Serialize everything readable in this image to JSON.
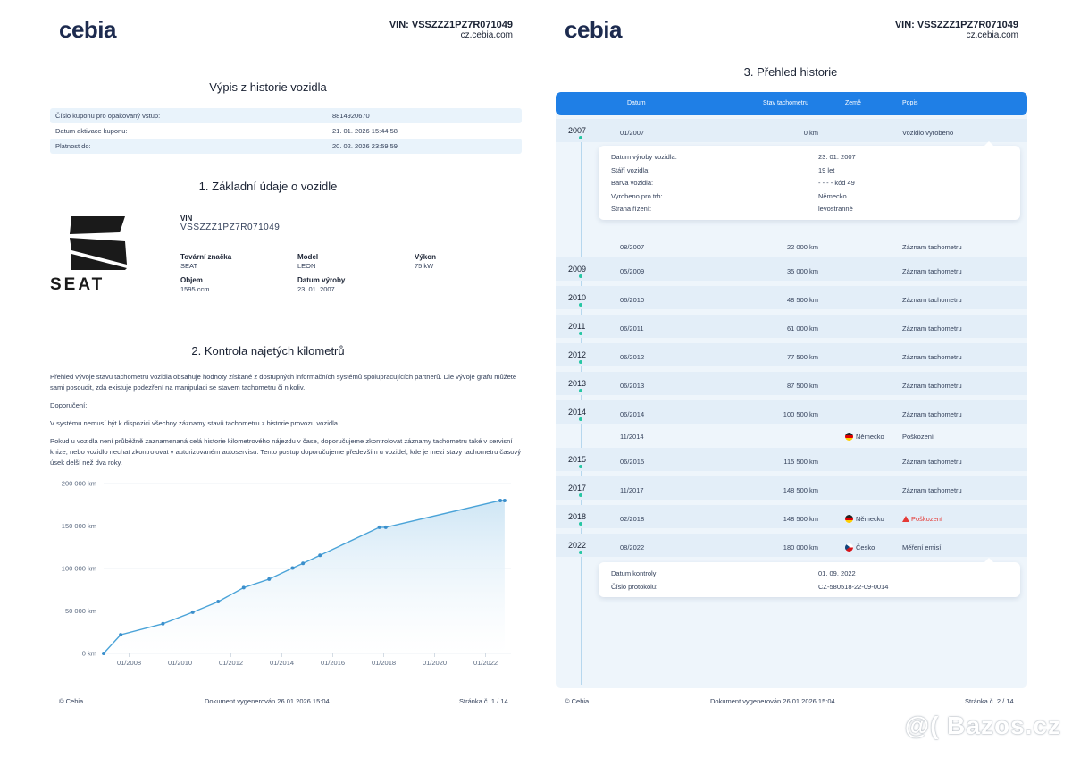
{
  "header": {
    "logo": "cebia",
    "vin_line": "VIN: VSSZZZ1PZ7R071049",
    "site": "cz.cebia.com"
  },
  "page1": {
    "title": "Výpis z historie vozidla",
    "coupon": [
      {
        "label": "Číslo kuponu pro opakovaný vstup:",
        "value": "8814920670"
      },
      {
        "label": "Datum aktivace kuponu:",
        "value": "21. 01. 2026 15:44:58"
      },
      {
        "label": "Platnost do:",
        "value": "20. 02. 2026 23:59:59"
      }
    ],
    "section1": "1. Základní údaje o vozidle",
    "brand_logo": "SEAT",
    "vehicle": {
      "vin_label": "VIN",
      "vin_value": "VSSZZZ1PZ7R071049",
      "make_label": "Tovární značka",
      "make_value": "SEAT",
      "model_label": "Model",
      "model_value": "LEON",
      "power_label": "Výkon",
      "power_value": "75 kW",
      "volume_label": "Objem",
      "volume_value": "1595 ccm",
      "prod_label": "Datum výroby",
      "prod_value": "23. 01. 2007"
    },
    "section2": "2. Kontrola najetých kilometrů",
    "para1": "Přehled vývoje stavu tachometru vozidla obsahuje hodnoty získané z dostupných informačních systémů spolupracujících partnerů. Dle vývoje grafu můžete sami posoudit, zda existuje podezření na manipulaci se stavem tachometru či nikoliv.",
    "para2": "Doporučení:",
    "para3": "V systému nemusí být k dispozici všechny záznamy stavů tachometru z historie provozu vozidla.",
    "para4": "Pokud u vozidla není průběžně zaznamenaná celá historie kilometrového nájezdu v čase, doporučujeme zkontrolovat záznamy tachometru také v servisní knize, nebo vozidlo nechat zkontrolovat v autorizovaném autoservisu. Tento postup doporučujeme především u vozidel, kde je mezi stavy tachometru časový úsek delší než dva roky.",
    "footer_left": "© Cebia",
    "footer_mid": "Dokument vygenerován 26.01.2026 15:04",
    "footer_right": "Stránka č. 1 / 14"
  },
  "chart_data": {
    "type": "area",
    "title": "",
    "xlabel": "",
    "ylabel": "",
    "x_ticks": [
      "01/2008",
      "01/2010",
      "01/2012",
      "01/2014",
      "01/2016",
      "01/2018",
      "01/2020",
      "01/2022"
    ],
    "y_ticks": [
      "0 km",
      "50 000 km",
      "100 000 km",
      "150 000 km",
      "200 000 km"
    ],
    "ylim": [
      0,
      200000
    ],
    "xlim": [
      2007.0,
      2023.0
    ],
    "grid": true,
    "series": [
      {
        "x": [
          2007.0,
          2007.67,
          2009.33,
          2010.5,
          2011.5,
          2012.5,
          2013.5,
          2014.42,
          2014.83,
          2015.5,
          2017.83,
          2018.08,
          2022.58,
          2022.75
        ],
        "y": [
          0,
          22000,
          35000,
          48500,
          61000,
          77500,
          87500,
          100500,
          106000,
          115500,
          148500,
          148500,
          180000,
          180000
        ]
      }
    ],
    "colors": {
      "line": "#4aa3d8",
      "fill_top": "#cfe6f5",
      "fill_bottom": "#ffffff",
      "grid": "#e6ecf2"
    }
  },
  "page2": {
    "title": "3. Přehled historie",
    "columns": {
      "date": "Datum",
      "odo": "Stav tachometru",
      "country": "Země",
      "desc": "Popis"
    },
    "rows": [
      {
        "year": "2007",
        "date": "01/2007",
        "km": "0 km",
        "country": "",
        "flag": "",
        "desc": "Vozidlo vyrobeno",
        "warn": false
      },
      {
        "year": "",
        "date": "08/2007",
        "km": "22 000 km",
        "country": "",
        "flag": "",
        "desc": "Záznam tachometru",
        "warn": false
      },
      {
        "year": "2009",
        "date": "05/2009",
        "km": "35 000 km",
        "country": "",
        "flag": "",
        "desc": "Záznam tachometru",
        "warn": false
      },
      {
        "year": "2010",
        "date": "06/2010",
        "km": "48 500 km",
        "country": "",
        "flag": "",
        "desc": "Záznam tachometru",
        "warn": false
      },
      {
        "year": "2011",
        "date": "06/2011",
        "km": "61 000 km",
        "country": "",
        "flag": "",
        "desc": "Záznam tachometru",
        "warn": false
      },
      {
        "year": "2012",
        "date": "06/2012",
        "km": "77 500 km",
        "country": "",
        "flag": "",
        "desc": "Záznam tachometru",
        "warn": false
      },
      {
        "year": "2013",
        "date": "06/2013",
        "km": "87 500 km",
        "country": "",
        "flag": "",
        "desc": "Záznam tachometru",
        "warn": false
      },
      {
        "year": "2014",
        "date": "06/2014",
        "km": "100 500 km",
        "country": "",
        "flag": "",
        "desc": "Záznam tachometru",
        "warn": false
      },
      {
        "year": "",
        "date": "11/2014",
        "km": "",
        "country": "Německo",
        "flag": "de",
        "desc": "Poškození",
        "warn": false
      },
      {
        "year": "2015",
        "date": "06/2015",
        "km": "115 500 km",
        "country": "",
        "flag": "",
        "desc": "Záznam tachometru",
        "warn": false
      },
      {
        "year": "2017",
        "date": "11/2017",
        "km": "148 500 km",
        "country": "",
        "flag": "",
        "desc": "Záznam tachometru",
        "warn": false
      },
      {
        "year": "2018",
        "date": "02/2018",
        "km": "148 500 km",
        "country": "Německo",
        "flag": "de",
        "desc": "Poškození",
        "warn": true
      },
      {
        "year": "2022",
        "date": "08/2022",
        "km": "180 000 km",
        "country": "Česko",
        "flag": "cz",
        "desc": "Měření emisí",
        "warn": false
      }
    ],
    "detail1": [
      {
        "k": "Datum výroby vozidla:",
        "v": "23. 01. 2007"
      },
      {
        "k": "Stáří vozidla:",
        "v": "19 let"
      },
      {
        "k": "Barva vozidla:",
        "v": "- - - - kód 49"
      },
      {
        "k": "Vyrobeno pro trh:",
        "v": "Německo"
      },
      {
        "k": "Strana řízení:",
        "v": "levostranné"
      }
    ],
    "detail2": [
      {
        "k": "Datum kontroly:",
        "v": "01. 09. 2022"
      },
      {
        "k": "Číslo protokolu:",
        "v": "CZ-580518-22-09-0014"
      }
    ],
    "footer_left": "© Cebia",
    "footer_mid": "Dokument vygenerován 26.01.2026 15:04",
    "footer_right": "Stránka č. 2 / 14"
  },
  "watermark": "@( Bazos.cz"
}
